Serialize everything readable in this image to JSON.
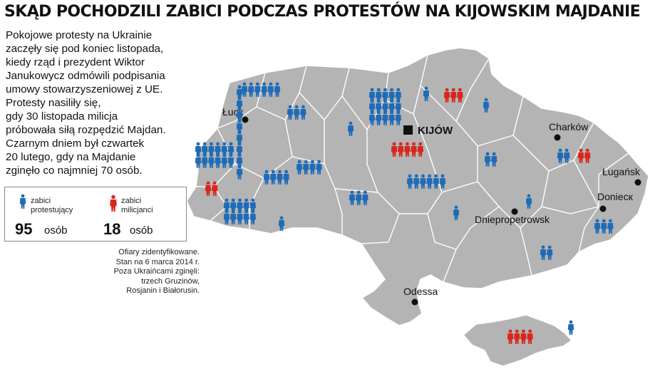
{
  "title": "SKĄD POCHODZILI ZABICI PODCZAS PROTESTÓW NA KIJOWSKIM MAJDANIE",
  "intro": "Pokojowe protesty na Ukrainie\nzaczęły się pod koniec listopada,\nkiedy rząd i prezydent Wiktor\nJanukowycz odmówili podpisania\numowy stowarzyszeniowej z UE.\nProtesty nasiliły się,\ngdy 30 listopada milicja\npróbowała siłą rozpędzić Majdan.\nCzarnym dniem był czwartek\n20 lutego, gdy na Majdanie\nzginęło co najmniej 70 osób.",
  "legend": {
    "protesters": {
      "label": "zabici\nprotestujący",
      "count": "95",
      "unit": "osób",
      "color": "#1e6bb8"
    },
    "police": {
      "label": "zabici\nmilicjanci",
      "count": "18",
      "unit": "osób",
      "color": "#d9261c"
    }
  },
  "note": "Ofiary zidentyfikowane.\nStan na 6 marca 2014 r.\nPoza Ukraińcami zginęli:\ntrzech Gruzinów,\nRosjanin i Białorusin.",
  "cities": [
    {
      "name": "Łuck",
      "marker": "dot"
    },
    {
      "name": "KIJÓW",
      "marker": "square"
    },
    {
      "name": "Charków",
      "marker": "dot"
    },
    {
      "name": "Ługańsk",
      "marker": "dot"
    },
    {
      "name": "Doniecк",
      "marker": "dot"
    },
    {
      "name": "Dniepropetrowsk",
      "marker": "dot"
    },
    {
      "name": "Odessa",
      "marker": "dot"
    }
  ],
  "groups": [
    {
      "kind": "protester",
      "count": 6
    },
    {
      "kind": "protester",
      "count": 3
    },
    {
      "kind": "protester",
      "count": 15
    },
    {
      "kind": "protester",
      "count": 1
    },
    {
      "kind": "police",
      "count": 3
    },
    {
      "kind": "protester",
      "count": 1
    },
    {
      "kind": "protester",
      "count": 1
    },
    {
      "kind": "police",
      "count": 5
    },
    {
      "kind": "protester",
      "count": 2
    },
    {
      "kind": "police",
      "count": 2
    },
    {
      "kind": "protester",
      "count": 12
    },
    {
      "kind": "police",
      "count": 2
    },
    {
      "kind": "protester",
      "count": 4
    },
    {
      "kind": "protester",
      "count": 4
    },
    {
      "kind": "protester",
      "count": 6
    },
    {
      "kind": "protester",
      "count": 3
    },
    {
      "kind": "protester",
      "count": 2
    },
    {
      "kind": "protester",
      "count": 10
    },
    {
      "kind": "protester",
      "count": 8
    },
    {
      "kind": "protester",
      "count": 1
    },
    {
      "kind": "protester",
      "count": 1
    },
    {
      "kind": "protester",
      "count": 1
    },
    {
      "kind": "protester",
      "count": 3
    },
    {
      "kind": "protester",
      "count": 2
    },
    {
      "kind": "police",
      "count": 4
    },
    {
      "kind": "protester",
      "count": 1
    }
  ]
}
